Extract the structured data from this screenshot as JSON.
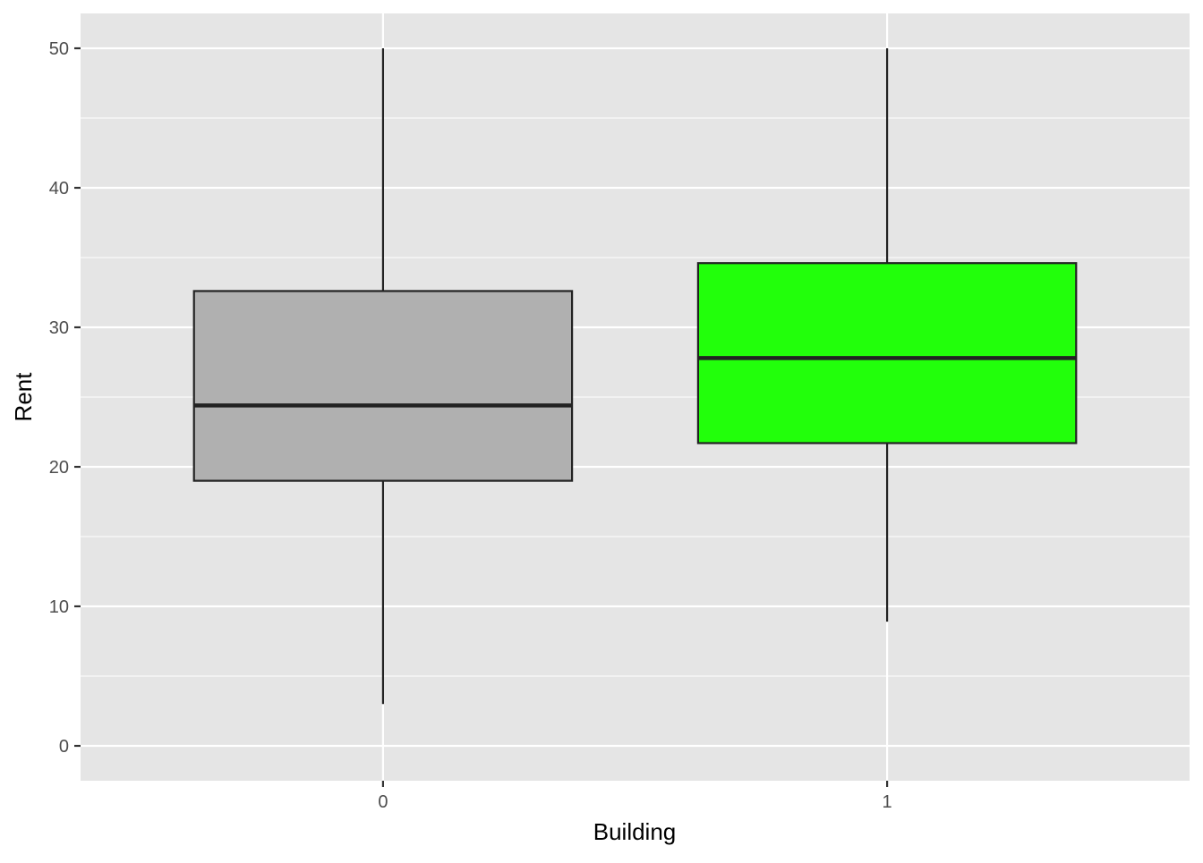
{
  "chart_data": {
    "type": "boxplot",
    "title": "",
    "xlabel": "Building",
    "ylabel": "Rent",
    "ylim": [
      -2.5,
      52.5
    ],
    "yticks": [
      0,
      10,
      20,
      30,
      40,
      50
    ],
    "grid": true,
    "panel_color": "#e5e5e5",
    "categories": [
      "0",
      "1"
    ],
    "boxes": [
      {
        "category": "0",
        "lower_whisker": 3.0,
        "q1": 19.0,
        "median": 24.4,
        "q3": 32.6,
        "upper_whisker": 50.0,
        "fill": "#b0b0b0"
      },
      {
        "category": "1",
        "lower_whisker": 8.9,
        "q1": 21.7,
        "median": 27.8,
        "q3": 34.6,
        "upper_whisker": 50.0,
        "fill": "#22ff0b"
      }
    ]
  }
}
